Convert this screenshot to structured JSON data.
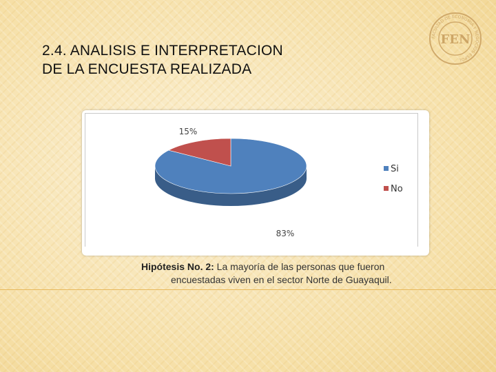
{
  "title": {
    "line1": "2.4. ANALISIS E INTERPRETACION",
    "line2": "DE LA ENCUESTA REALIZADA"
  },
  "logo": {
    "text": "FEN",
    "ring_text": "FACULTAD DE ECONOMIA Y NEGOCIOS ESPOL",
    "icon": "fen-logo-icon"
  },
  "chart_data": {
    "type": "pie",
    "style": "3d",
    "categories": [
      "Si",
      "No"
    ],
    "values": [
      83,
      15
    ],
    "data_labels": [
      "83%",
      "15%"
    ],
    "colors": [
      "#4f81bd",
      "#c0504d"
    ],
    "legend_position": "right"
  },
  "caption": {
    "bold": "Hipótesis No. 2:",
    "line1": " La mayoría de las personas que fueron",
    "line2": "encuestadas viven en el sector Norte de Guayaquil."
  },
  "colors": {
    "background": "#f6e3b0",
    "rule": "#e8b85a",
    "logo": "#c9a060"
  }
}
